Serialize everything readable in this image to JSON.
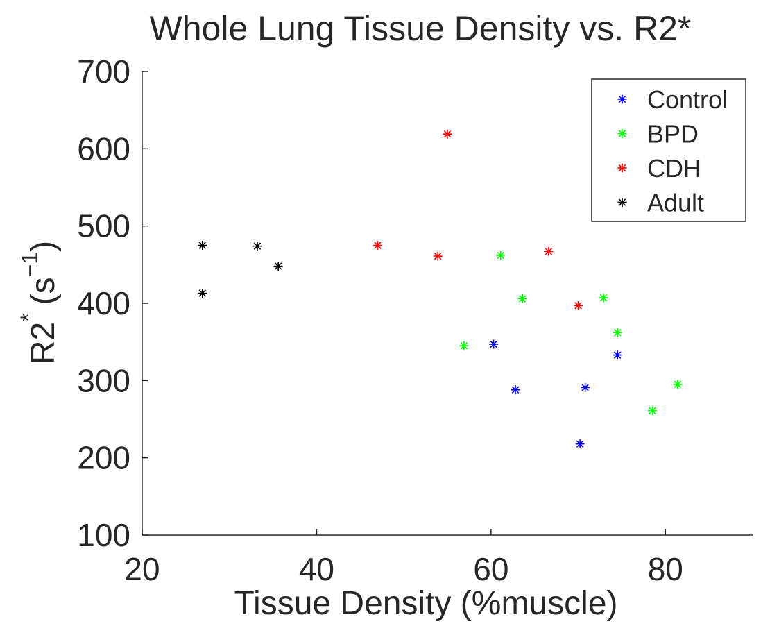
{
  "chart_data": {
    "type": "scatter",
    "title": "Whole Lung Tissue Density vs. R2*",
    "xlabel": "Tissue Density (%muscle)",
    "ylabel": {
      "base": "R2",
      "sup": "*",
      "unit_open": "(s",
      "unit_sup": "−1",
      "unit_close": ")"
    },
    "xlim": [
      20,
      90
    ],
    "ylim": [
      100,
      700
    ],
    "xticks": [
      20,
      40,
      60,
      80
    ],
    "yticks": [
      100,
      200,
      300,
      400,
      500,
      600,
      700
    ],
    "marker": "*",
    "legend_position": "top-right",
    "series": [
      {
        "name": "Control",
        "color": "#0000ff",
        "points": [
          [
            60.3,
            347
          ],
          [
            62.8,
            288
          ],
          [
            70.2,
            218
          ],
          [
            70.8,
            291
          ],
          [
            74.5,
            333
          ]
        ]
      },
      {
        "name": "BPD",
        "color": "#00ff00",
        "points": [
          [
            56.9,
            345
          ],
          [
            61.1,
            462
          ],
          [
            63.6,
            406
          ],
          [
            72.9,
            407
          ],
          [
            74.5,
            362
          ],
          [
            78.5,
            261
          ],
          [
            81.4,
            295
          ]
        ]
      },
      {
        "name": "CDH",
        "color": "#ff0000",
        "points": [
          [
            47.0,
            475
          ],
          [
            53.9,
            461
          ],
          [
            55.0,
            619
          ],
          [
            66.6,
            467
          ],
          [
            70.0,
            397
          ]
        ]
      },
      {
        "name": "Adult",
        "color": "#000000",
        "points": [
          [
            26.9,
            475
          ],
          [
            26.9,
            413
          ],
          [
            33.2,
            474
          ],
          [
            35.6,
            448
          ]
        ]
      }
    ]
  }
}
